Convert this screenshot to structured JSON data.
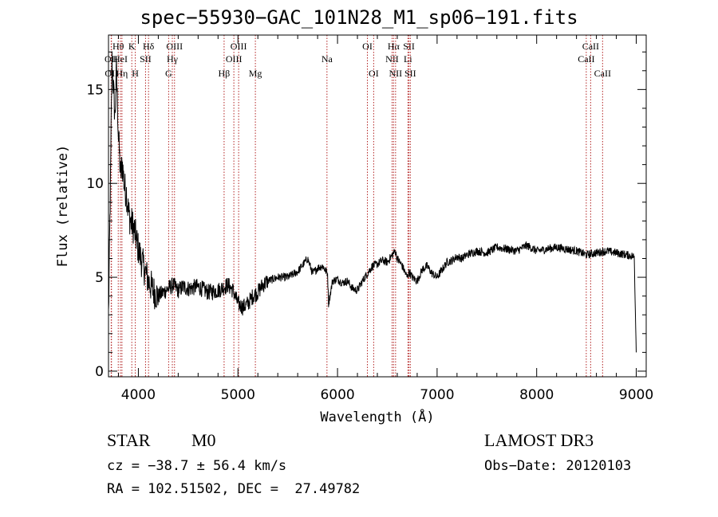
{
  "title": "spec−55930−GAC_101N28_M1_sp06−191.fits",
  "info": {
    "class": "STAR",
    "subclass": "M0",
    "survey": "LAMOST DR3",
    "cz": "cz = −38.7 ± 56.4 km/s",
    "obs_date": "Obs−Date: 20120103",
    "coords": "RA = 102.51502, DEC =  27.49782"
  },
  "chart_data": {
    "type": "line",
    "title": "spec−55930−GAC_101N28_M1_sp06−191.fits",
    "xlabel": "Wavelength (Å)",
    "ylabel": "Flux (relative)",
    "xlim": [
      3700,
      9100
    ],
    "ylim": [
      -0.3,
      17.9
    ],
    "grid": false,
    "x_ticks": [
      4000,
      5000,
      6000,
      7000,
      8000,
      9000
    ],
    "y_ticks": [
      0,
      5,
      10,
      15
    ],
    "series": [
      {
        "x": [
          3700,
          3720,
          3735,
          3750,
          3765,
          3780,
          3800,
          3820,
          3840,
          3860,
          3880,
          3900,
          3920,
          3940,
          3960,
          3980,
          4000,
          4025,
          4050,
          4075,
          4100,
          4130,
          4160,
          4200,
          4250,
          4300,
          4350,
          4400,
          4450,
          4500,
          4600,
          4700,
          4800,
          4900,
          4950,
          5000,
          5050,
          5100,
          5150,
          5200,
          5250,
          5300,
          5400,
          5500,
          5600,
          5700,
          5750,
          5800,
          5850,
          5900,
          5910,
          5950,
          6000,
          6050,
          6100,
          6150,
          6200,
          6250,
          6300,
          6350,
          6400,
          6450,
          6500,
          6550,
          6580,
          6600,
          6650,
          6700,
          6720,
          6750,
          6800,
          6850,
          6900,
          6950,
          7000,
          7050,
          7100,
          7150,
          7200,
          7250,
          7300,
          7400,
          7500,
          7600,
          7700,
          7800,
          7900,
          8000,
          8100,
          8200,
          8300,
          8400,
          8500,
          8600,
          8700,
          8800,
          8900,
          8980,
          9000
        ],
        "y": [
          3.0,
          10.0,
          16.5,
          15.0,
          13.5,
          16.0,
          12.5,
          10.5,
          11.0,
          9.8,
          9.5,
          8.5,
          8.0,
          7.8,
          7.5,
          7.0,
          6.5,
          6.0,
          5.6,
          5.2,
          4.8,
          4.5,
          4.2,
          4.0,
          4.2,
          4.4,
          4.6,
          4.3,
          4.5,
          4.4,
          4.5,
          4.2,
          4.3,
          4.6,
          4.3,
          3.6,
          3.4,
          3.6,
          4.0,
          4.2,
          4.6,
          4.8,
          5.0,
          5.0,
          5.3,
          6.0,
          5.2,
          5.5,
          5.6,
          5.2,
          3.6,
          4.8,
          4.9,
          4.7,
          4.8,
          4.4,
          4.3,
          4.8,
          5.2,
          5.6,
          5.7,
          5.9,
          5.8,
          6.2,
          6.4,
          6.0,
          5.6,
          5.0,
          5.3,
          5.0,
          4.8,
          5.4,
          5.6,
          5.2,
          5.0,
          5.4,
          5.8,
          5.9,
          6.1,
          6.0,
          6.2,
          6.4,
          6.3,
          6.6,
          6.5,
          6.4,
          6.7,
          6.4,
          6.5,
          6.6,
          6.5,
          6.4,
          6.2,
          6.3,
          6.4,
          6.3,
          6.2,
          6.1,
          1.0
        ]
      }
    ],
    "lines": [
      {
        "label": "OII",
        "x": 3727,
        "row": 2
      },
      {
        "label": "OII",
        "x": 3730,
        "row": 3
      },
      {
        "label": "Hθ",
        "x": 3798,
        "row": 1
      },
      {
        "label": "HeI",
        "x": 3820,
        "row": 2
      },
      {
        "label": "Hη",
        "x": 3835,
        "row": 3
      },
      {
        "label": "K",
        "x": 3934,
        "row": 1
      },
      {
        "label": "H",
        "x": 3969,
        "row": 3
      },
      {
        "label": "SII",
        "x": 4072,
        "row": 2
      },
      {
        "label": "Hδ",
        "x": 4102,
        "row": 1
      },
      {
        "label": "G",
        "x": 4304,
        "row": 3
      },
      {
        "label": "Hγ",
        "x": 4341,
        "row": 2
      },
      {
        "label": "OIII",
        "x": 4363,
        "row": 1
      },
      {
        "label": "Hβ",
        "x": 4861,
        "row": 3
      },
      {
        "label": "OIII",
        "x": 4959,
        "row": 2
      },
      {
        "label": "OIII",
        "x": 5007,
        "row": 1
      },
      {
        "label": "Mg",
        "x": 5175,
        "row": 3
      },
      {
        "label": "Na",
        "x": 5894,
        "row": 2
      },
      {
        "label": "OI",
        "x": 6300,
        "row": 1
      },
      {
        "label": "OI",
        "x": 6363,
        "row": 3
      },
      {
        "label": "NII",
        "x": 6548,
        "row": 2
      },
      {
        "label": "Hα",
        "x": 6563,
        "row": 1
      },
      {
        "label": "NII",
        "x": 6583,
        "row": 3
      },
      {
        "label": "Li",
        "x": 6707,
        "row": 2
      },
      {
        "label": "SII",
        "x": 6717,
        "row": 1
      },
      {
        "label": "SII",
        "x": 6731,
        "row": 3
      },
      {
        "label": "CaII",
        "x": 8498,
        "row": 2
      },
      {
        "label": "CaII",
        "x": 8542,
        "row": 1
      },
      {
        "label": "CaII",
        "x": 8662,
        "row": 3
      }
    ]
  }
}
